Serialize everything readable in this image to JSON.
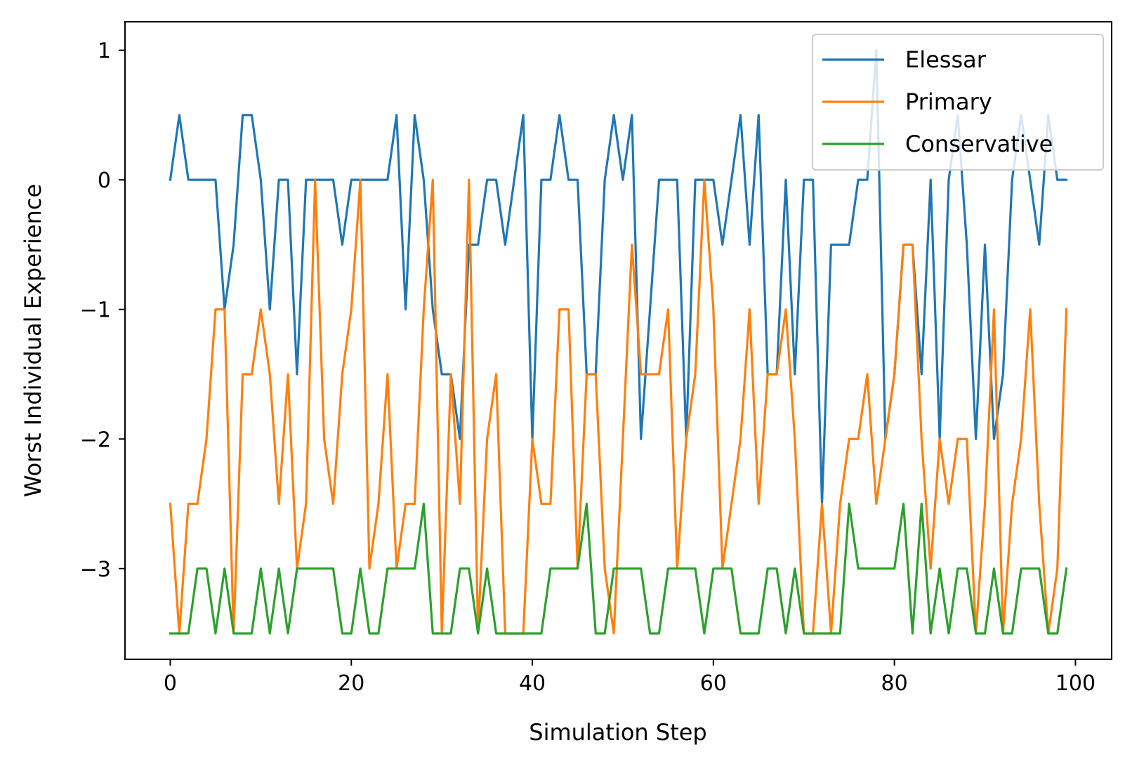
{
  "chart_data": {
    "type": "line",
    "xlabel": "Simulation Step",
    "ylabel": "Worst Individual Experience",
    "xlim": [
      -5,
      104
    ],
    "ylim": [
      -3.7,
      1.22
    ],
    "x_ticks": [
      0,
      20,
      40,
      60,
      80,
      100
    ],
    "x_tick_labels": [
      "0",
      "20",
      "40",
      "60",
      "80",
      "100"
    ],
    "y_ticks": [
      1,
      0,
      -1,
      -2,
      -3
    ],
    "y_tick_labels": [
      "1",
      "0",
      "−1",
      "−2",
      "−3"
    ],
    "grid": false,
    "legend_position": "top-right",
    "x": [
      0,
      1,
      2,
      3,
      4,
      5,
      6,
      7,
      8,
      9,
      10,
      11,
      12,
      13,
      14,
      15,
      16,
      17,
      18,
      19,
      20,
      21,
      22,
      23,
      24,
      25,
      26,
      27,
      28,
      29,
      30,
      31,
      32,
      33,
      34,
      35,
      36,
      37,
      38,
      39,
      40,
      41,
      42,
      43,
      44,
      45,
      46,
      47,
      48,
      49,
      50,
      51,
      52,
      53,
      54,
      55,
      56,
      57,
      58,
      59,
      60,
      61,
      62,
      63,
      64,
      65,
      66,
      67,
      68,
      69,
      70,
      71,
      72,
      73,
      74,
      75,
      76,
      77,
      78,
      79,
      80,
      81,
      82,
      83,
      84,
      85,
      86,
      87,
      88,
      89,
      90,
      91,
      92,
      93,
      94,
      95,
      96,
      97,
      98,
      99
    ],
    "series": [
      {
        "name": "Elessar",
        "color": "#1f77b4",
        "values": [
          0,
          0.5,
          0,
          0,
          0,
          0,
          -1,
          -0.5,
          0.5,
          0.5,
          0,
          -1,
          0,
          0,
          -1.5,
          0,
          0,
          0,
          0,
          -0.5,
          0,
          0,
          0,
          0,
          0,
          0.5,
          -1,
          0.5,
          0,
          -1,
          -1.5,
          -1.5,
          -2,
          -0.5,
          -0.5,
          0,
          0,
          -0.5,
          0,
          0.5,
          -2,
          0,
          0,
          0.5,
          0,
          0,
          -1.5,
          -1.5,
          0,
          0.5,
          0,
          0.5,
          -2,
          -1,
          0,
          0,
          0,
          -2,
          0,
          0,
          0,
          -0.5,
          0,
          0.5,
          -0.5,
          0.5,
          -1.5,
          -1.5,
          0,
          -1.5,
          0,
          0,
          -2.5,
          -0.5,
          -0.5,
          -0.5,
          0,
          0,
          1,
          -2,
          -1.5,
          -0.5,
          -0.5,
          -1.5,
          0,
          -2,
          0,
          0.5,
          -0.5,
          -2,
          -0.5,
          -2,
          -1.5,
          0,
          0.5,
          0,
          -0.5,
          0.5,
          0,
          0
        ]
      },
      {
        "name": "Primary",
        "color": "#ff7f0e",
        "values": [
          -2.5,
          -3.5,
          -2.5,
          -2.5,
          -2,
          -1,
          -1,
          -3.5,
          -1.5,
          -1.5,
          -1,
          -1.5,
          -2.5,
          -1.5,
          -3,
          -2.5,
          0,
          -2,
          -2.5,
          -1.5,
          -1,
          0,
          -3,
          -2.5,
          -1.5,
          -3,
          -2.5,
          -2.5,
          -1,
          0,
          -3.5,
          -1.5,
          -2.5,
          0,
          -3.5,
          -2,
          -1.5,
          -3.5,
          -3.5,
          -3.5,
          -2,
          -2.5,
          -2.5,
          -1,
          -1,
          -3,
          -1.5,
          -1.5,
          -3,
          -3.5,
          -2,
          -0.5,
          -1.5,
          -1.5,
          -1.5,
          -1,
          -3,
          -2,
          -1.5,
          0,
          -1,
          -3,
          -2.5,
          -2,
          -1,
          -2.5,
          -1.5,
          -1.5,
          -1,
          -2,
          -3.5,
          -3.5,
          -2.5,
          -3.5,
          -2.5,
          -2,
          -2,
          -1.5,
          -2.5,
          -2,
          -1.5,
          -0.5,
          -0.5,
          -2,
          -3,
          -2,
          -2.5,
          -2,
          -2,
          -3.5,
          -2.5,
          -1,
          -3.5,
          -2.5,
          -2,
          -1,
          -2.5,
          -3.5,
          -3,
          -1
        ]
      },
      {
        "name": "Conservative",
        "color": "#2ca02c",
        "values": [
          -3.5,
          -3.5,
          -3.5,
          -3,
          -3,
          -3.5,
          -3,
          -3.5,
          -3.5,
          -3.5,
          -3,
          -3.5,
          -3,
          -3.5,
          -3,
          -3,
          -3,
          -3,
          -3,
          -3.5,
          -3.5,
          -3,
          -3.5,
          -3.5,
          -3,
          -3,
          -3,
          -3,
          -2.5,
          -3.5,
          -3.5,
          -3.5,
          -3,
          -3,
          -3.5,
          -3,
          -3.5,
          -3.5,
          -3.5,
          -3.5,
          -3.5,
          -3.5,
          -3,
          -3,
          -3,
          -3,
          -2.5,
          -3.5,
          -3.5,
          -3,
          -3,
          -3,
          -3,
          -3.5,
          -3.5,
          -3,
          -3,
          -3,
          -3,
          -3.5,
          -3,
          -3,
          -3,
          -3.5,
          -3.5,
          -3.5,
          -3,
          -3,
          -3.5,
          -3,
          -3.5,
          -3.5,
          -3.5,
          -3.5,
          -3.5,
          -2.5,
          -3,
          -3,
          -3,
          -3,
          -3,
          -2.5,
          -3.5,
          -2.5,
          -3.5,
          -3,
          -3.5,
          -3,
          -3,
          -3.5,
          -3.5,
          -3,
          -3.5,
          -3.5,
          -3,
          -3,
          -3,
          -3.5,
          -3.5,
          -3
        ]
      }
    ]
  }
}
